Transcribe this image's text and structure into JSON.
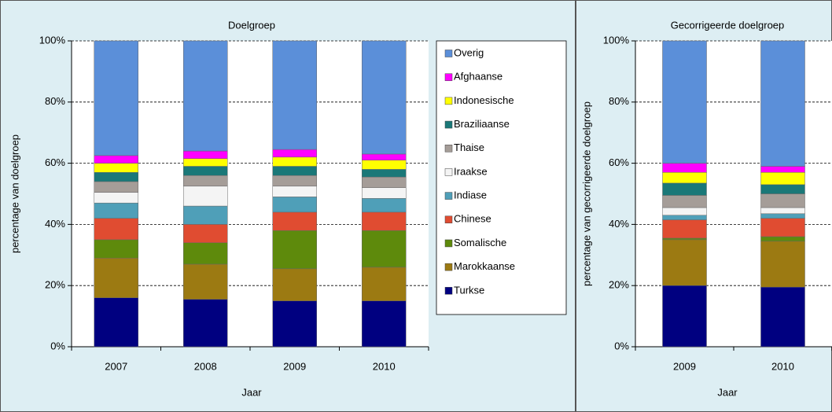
{
  "chart_data": [
    {
      "type": "bar",
      "stacked": true,
      "title": "Doelgroep",
      "x_label": "Jaar",
      "y_label": "percentage van doelgroep",
      "categories": [
        "2007",
        "2008",
        "2009",
        "2010"
      ],
      "ylim": [
        0,
        100
      ],
      "yticks": [
        {
          "value": 0,
          "label": "0%"
        },
        {
          "value": 20,
          "label": "20%"
        },
        {
          "value": 40,
          "label": "40%"
        },
        {
          "value": 60,
          "label": "60%"
        },
        {
          "value": 80,
          "label": "80%"
        },
        {
          "value": 100,
          "label": "100%"
        }
      ],
      "grid": true,
      "legend": "right",
      "series": [
        {
          "name": "Turkse",
          "color": "#000080",
          "values": [
            16,
            15.5,
            15,
            15
          ]
        },
        {
          "name": "Marokkaanse",
          "color": "#9c7a12",
          "values": [
            13,
            11.5,
            10.5,
            11
          ]
        },
        {
          "name": "Somalische",
          "color": "#5e8a0c",
          "values": [
            6,
            7,
            12.5,
            12
          ]
        },
        {
          "name": "Chinese",
          "color": "#e04c31",
          "values": [
            7,
            6,
            6,
            6
          ]
        },
        {
          "name": "Indiase",
          "color": "#4f9fb8",
          "values": [
            5,
            6,
            5,
            4.5
          ]
        },
        {
          "name": "Iraakse",
          "color": "#f4f4f4",
          "values": [
            3.5,
            6.5,
            3.5,
            3.5
          ]
        },
        {
          "name": "Thaise",
          "color": "#a59d98",
          "values": [
            3.5,
            3.5,
            3.5,
            3.5
          ]
        },
        {
          "name": "Braziliaanse",
          "color": "#1a7878",
          "values": [
            3,
            3,
            3,
            2.5
          ]
        },
        {
          "name": "Indonesische",
          "color": "#ffff00",
          "values": [
            3,
            2.5,
            3,
            3
          ]
        },
        {
          "name": "Afghaanse",
          "color": "#ff00ff",
          "values": [
            2.5,
            2.5,
            2.5,
            2
          ]
        },
        {
          "name": "Overig",
          "color": "#5b8fd9",
          "values": [
            37.5,
            36,
            35.5,
            37
          ]
        }
      ]
    },
    {
      "type": "bar",
      "stacked": true,
      "title": "Gecorrigeerde doelgroep",
      "x_label": "Jaar",
      "y_label": "percentage van gecorrigeerde doelgroep",
      "categories": [
        "2009",
        "2010"
      ],
      "ylim": [
        0,
        100
      ],
      "yticks": [
        {
          "value": 0,
          "label": "0%"
        },
        {
          "value": 20,
          "label": "20%"
        },
        {
          "value": 40,
          "label": "40%"
        },
        {
          "value": 60,
          "label": "60%"
        },
        {
          "value": 80,
          "label": "80%"
        },
        {
          "value": 100,
          "label": "100%"
        }
      ],
      "grid": true,
      "series": [
        {
          "color": "#000080",
          "values": [
            20,
            19.5
          ]
        },
        {
          "color": "#9c7a12",
          "values": [
            15,
            15
          ]
        },
        {
          "color": "#5e8a0c",
          "values": [
            0.5,
            1.5
          ]
        },
        {
          "color": "#e04c31",
          "values": [
            6,
            6
          ]
        },
        {
          "color": "#4f9fb8",
          "values": [
            1.5,
            1.5
          ]
        },
        {
          "color": "#f4f4f4",
          "values": [
            2.5,
            2
          ]
        },
        {
          "color": "#a59d98",
          "values": [
            4,
            4.5
          ]
        },
        {
          "color": "#1a7878",
          "values": [
            4,
            3
          ]
        },
        {
          "color": "#ffff00",
          "values": [
            3.5,
            4
          ]
        },
        {
          "color": "#ff00ff",
          "values": [
            3,
            2
          ]
        },
        {
          "color": "#5b8fd9",
          "values": [
            40,
            41
          ]
        }
      ]
    }
  ]
}
